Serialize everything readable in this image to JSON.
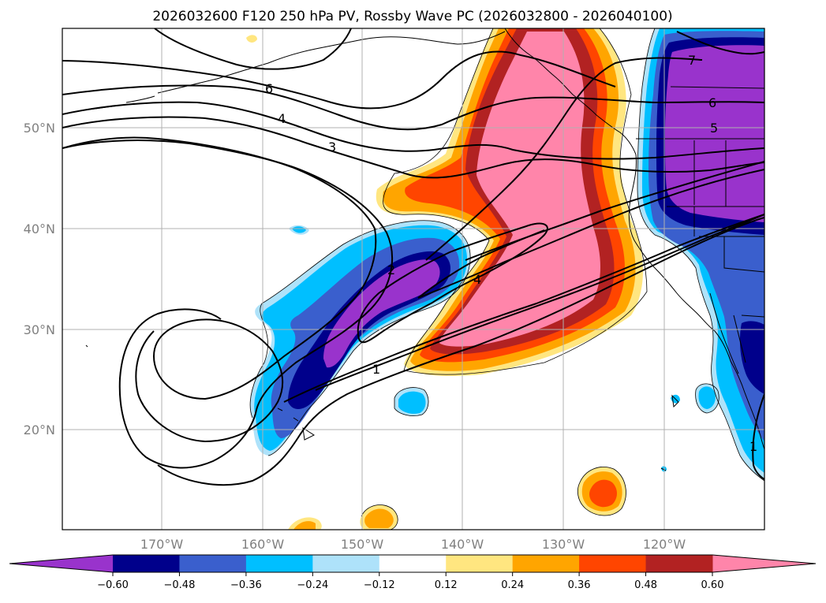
{
  "title": "2026032600 F120 250 hPa PV, Rossby Wave PC (2026032800 - 2026040100)",
  "map": {
    "lat_labels": [
      "50°N",
      "40°N",
      "30°N",
      "20°N"
    ],
    "lon_labels": [
      "170°W",
      "160°W",
      "150°W",
      "140°W",
      "130°W",
      "120°W"
    ]
  },
  "contour_labels": [
    "6",
    "4",
    "3",
    "2",
    "1",
    "4",
    "7",
    "6",
    "5",
    "1"
  ],
  "colorbar": {
    "ticks": [
      "−0.60",
      "−0.48",
      "−0.36",
      "−0.24",
      "−0.12",
      "0.12",
      "0.24",
      "0.36",
      "0.48",
      "0.60"
    ],
    "colors": [
      "#9933cc",
      "#00008b",
      "#3a5fcd",
      "#00bfff",
      "#aee2fa",
      "#ffffff",
      "#ffe680",
      "#ffa500",
      "#ff4500",
      "#b22222",
      "#ff85aa"
    ]
  }
}
